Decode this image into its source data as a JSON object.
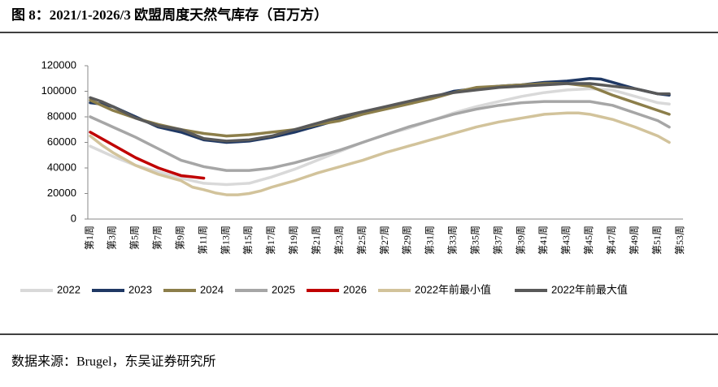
{
  "chart_data": {
    "type": "line",
    "title": "图 8：2021/1-2026/3 欧盟周度天然气库存（百万方）",
    "source": "数据来源：Brugel，东吴证券研究所",
    "categories": [
      "第1周",
      null,
      "第3周",
      null,
      "第5周",
      null,
      "第7周",
      null,
      "第9周",
      null,
      "第11周",
      null,
      "第13周",
      null,
      "第15周",
      null,
      "第17周",
      null,
      "第19周",
      null,
      "第21周",
      null,
      "第23周",
      null,
      "第25周",
      null,
      "第27周",
      null,
      "第29周",
      null,
      "第31周",
      null,
      "第33周",
      null,
      "第35周",
      null,
      "第37周",
      null,
      "第39周",
      null,
      "第41周",
      null,
      "第43周",
      null,
      "第45周",
      null,
      "第47周",
      null,
      "第49周",
      null,
      "第51周",
      null,
      "第53周"
    ],
    "ylim": [
      0,
      120000
    ],
    "yticks": [
      0,
      20000,
      40000,
      60000,
      80000,
      100000,
      120000
    ],
    "series": [
      {
        "name": "2022",
        "color": "#d9d9d9",
        "values": [
          57000,
          53000,
          49000,
          45500,
          42000,
          39500,
          37000,
          34500,
          32000,
          30000,
          28000,
          27500,
          27000,
          27500,
          28000,
          30500,
          33000,
          36000,
          39000,
          42500,
          46000,
          49500,
          53000,
          56500,
          60000,
          63000,
          66000,
          68500,
          71000,
          74000,
          77000,
          80000,
          83000,
          85500,
          88000,
          90000,
          92000,
          94000,
          96000,
          97500,
          99000,
          100000,
          101000,
          101500,
          102000,
          101500,
          101000,
          98500,
          96000,
          93500,
          91000,
          90000,
          null
        ]
      },
      {
        "name": "2023",
        "color": "#1f3864",
        "values": [
          91000,
          90000,
          88000,
          84000,
          80000,
          76000,
          72000,
          70000,
          68000,
          65000,
          62000,
          61000,
          60000,
          60500,
          61000,
          62500,
          64000,
          66000,
          68000,
          70500,
          73000,
          75500,
          78000,
          80500,
          83000,
          85000,
          87000,
          89000,
          91000,
          93000,
          95000,
          97500,
          100000,
          101000,
          102000,
          103000,
          104000,
          104500,
          105000,
          106000,
          107000,
          107500,
          108000,
          109000,
          110000,
          109500,
          107000,
          104500,
          102000,
          100000,
          98000,
          97000,
          null
        ]
      },
      {
        "name": "2024",
        "color": "#8c7e4a",
        "values": [
          93000,
          89000,
          85000,
          82000,
          79000,
          76500,
          74000,
          72000,
          70000,
          68500,
          67000,
          66000,
          65000,
          65500,
          66000,
          67000,
          68000,
          69000,
          70000,
          72000,
          74000,
          75500,
          77000,
          79500,
          82000,
          84000,
          86000,
          88000,
          90000,
          92000,
          94000,
          96500,
          99000,
          101000,
          103000,
          103500,
          104000,
          104500,
          105000,
          105500,
          106000,
          106000,
          106000,
          105000,
          104000,
          100500,
          97000,
          94000,
          91000,
          88000,
          85000,
          82000,
          null
        ]
      },
      {
        "name": "2025",
        "color": "#a6a6a6",
        "values": [
          80000,
          76000,
          72000,
          68000,
          64000,
          59500,
          55000,
          50500,
          46000,
          43500,
          41000,
          39500,
          38000,
          38000,
          38000,
          39000,
          40000,
          42000,
          44000,
          46500,
          49000,
          51500,
          54000,
          57000,
          60000,
          63000,
          66000,
          69000,
          72000,
          74500,
          77000,
          79500,
          82000,
          84000,
          86000,
          87500,
          89000,
          90000,
          91000,
          91500,
          92000,
          92000,
          92000,
          92000,
          92000,
          90500,
          89000,
          86000,
          83000,
          80000,
          77000,
          72000,
          null
        ]
      },
      {
        "name": "2026",
        "color": "#c00000",
        "values": [
          68000,
          63000,
          58000,
          53000,
          48000,
          44000,
          40000,
          37000,
          34000,
          33000,
          32000,
          null,
          null,
          null,
          null,
          null,
          null,
          null,
          null,
          null,
          null,
          null,
          null,
          null,
          null,
          null,
          null,
          null,
          null,
          null,
          null,
          null,
          null,
          null,
          null,
          null,
          null,
          null,
          null,
          null,
          null,
          null,
          null,
          null,
          null,
          null,
          null,
          null,
          null,
          null,
          null,
          null,
          null
        ]
      },
      {
        "name": "2022年前最小值",
        "color": "#d2c39b",
        "values": [
          65000,
          58000,
          52000,
          47000,
          42000,
          38500,
          35000,
          32500,
          30000,
          25000,
          23000,
          20500,
          19000,
          19000,
          20000,
          22000,
          25000,
          27500,
          30000,
          33000,
          36000,
          38500,
          41000,
          43500,
          46000,
          49000,
          52000,
          54500,
          57000,
          59500,
          62000,
          64500,
          67000,
          69500,
          72000,
          74000,
          76000,
          77500,
          79000,
          80500,
          82000,
          82500,
          83000,
          83000,
          82000,
          80000,
          78000,
          75000,
          72000,
          68500,
          65000,
          60000,
          null
        ]
      },
      {
        "name": "2022年前最大值",
        "color": "#595959",
        "values": [
          95000,
          92000,
          88000,
          83500,
          79000,
          76000,
          73000,
          71500,
          70000,
          66500,
          63000,
          62000,
          61000,
          61500,
          62000,
          63500,
          65000,
          67500,
          70000,
          72500,
          75000,
          77500,
          80000,
          82000,
          84000,
          86000,
          88000,
          90000,
          92000,
          94000,
          96000,
          97500,
          99000,
          100000,
          101000,
          102000,
          103000,
          103500,
          104000,
          104500,
          105000,
          105500,
          106000,
          106000,
          106000,
          105000,
          104000,
          103000,
          102000,
          100000,
          98000,
          98000,
          null
        ]
      }
    ]
  }
}
